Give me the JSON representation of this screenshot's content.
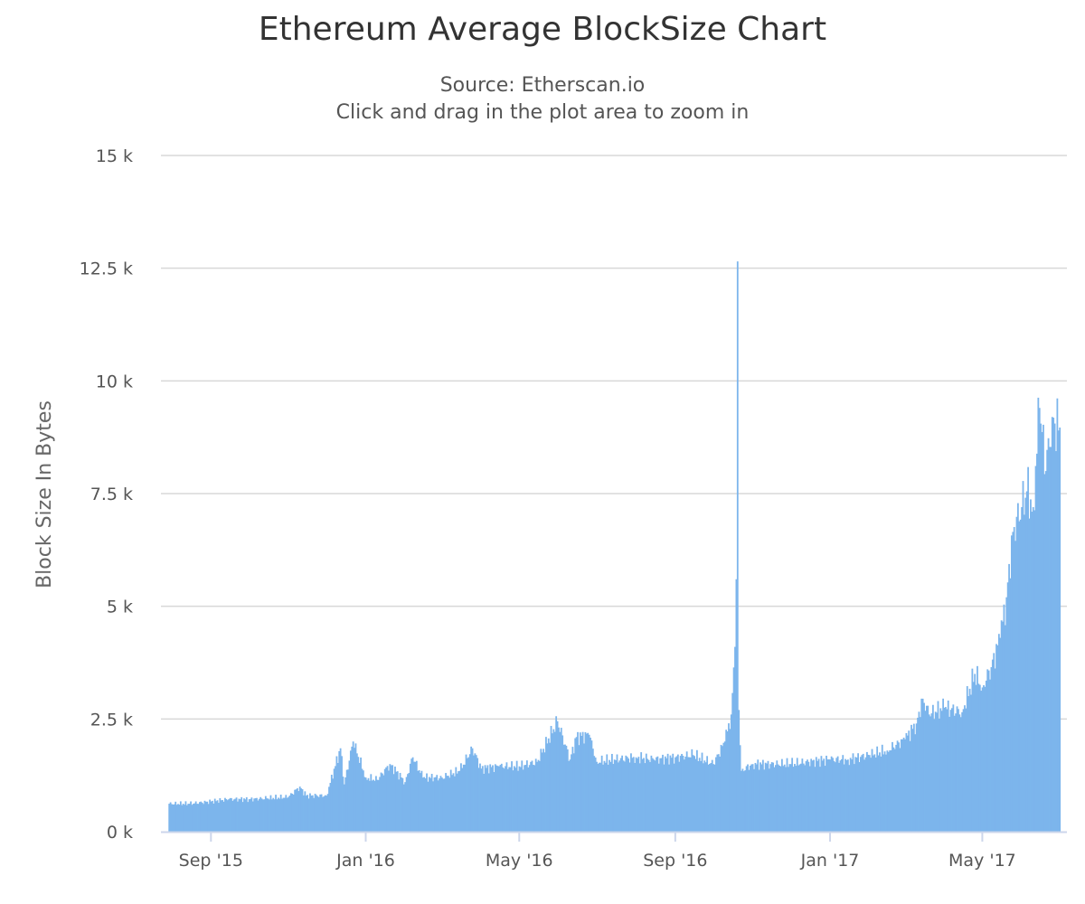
{
  "chart_data": {
    "type": "bar",
    "title": "Ethereum Average BlockSize Chart",
    "subtitle": "Source: Etherscan.io",
    "subtitle2": "Click and drag in the plot area to zoom in",
    "ylabel": "Block Size In Bytes",
    "xlabel": "",
    "ylim": [
      0,
      15000
    ],
    "y_ticks": [
      {
        "value": 0,
        "label": "0 k"
      },
      {
        "value": 2500,
        "label": "2.5 k"
      },
      {
        "value": 5000,
        "label": "5 k"
      },
      {
        "value": 7500,
        "label": "7.5 k"
      },
      {
        "value": 10000,
        "label": "10 k"
      },
      {
        "value": 12500,
        "label": "12.5 k"
      },
      {
        "value": 15000,
        "label": "15 k"
      }
    ],
    "xlim": [
      "2015-07-30",
      "2017-07-01"
    ],
    "x_ticks": [
      {
        "date": "2015-09-01",
        "label": "Sep '15"
      },
      {
        "date": "2016-01-01",
        "label": "Jan '16"
      },
      {
        "date": "2016-05-01",
        "label": "May '16"
      },
      {
        "date": "2016-09-01",
        "label": "Sep '16"
      },
      {
        "date": "2017-01-01",
        "label": "Jan '17"
      },
      {
        "date": "2017-05-01",
        "label": "May '17"
      }
    ],
    "series_color": "#7cb5ec",
    "grid": true,
    "legend": "none",
    "points": [
      [
        "2015-07-30",
        620
      ],
      [
        "2015-08-15",
        620
      ],
      [
        "2015-09-01",
        670
      ],
      [
        "2015-09-15",
        720
      ],
      [
        "2015-10-01",
        720
      ],
      [
        "2015-10-15",
        740
      ],
      [
        "2015-11-01",
        770
      ],
      [
        "2015-11-10",
        1000
      ],
      [
        "2015-11-15",
        800
      ],
      [
        "2015-12-01",
        800
      ],
      [
        "2015-12-12",
        1850
      ],
      [
        "2015-12-15",
        1050
      ],
      [
        "2015-12-22",
        2000
      ],
      [
        "2016-01-01",
        1200
      ],
      [
        "2016-01-10",
        1150
      ],
      [
        "2016-01-20",
        1500
      ],
      [
        "2016-02-01",
        1100
      ],
      [
        "2016-02-07",
        1650
      ],
      [
        "2016-02-15",
        1200
      ],
      [
        "2016-03-01",
        1200
      ],
      [
        "2016-03-15",
        1350
      ],
      [
        "2016-03-25",
        1850
      ],
      [
        "2016-04-01",
        1400
      ],
      [
        "2016-04-15",
        1450
      ],
      [
        "2016-05-01",
        1450
      ],
      [
        "2016-05-15",
        1550
      ],
      [
        "2016-05-31",
        2450
      ],
      [
        "2016-06-10",
        1600
      ],
      [
        "2016-06-15",
        2100
      ],
      [
        "2016-06-25",
        2150
      ],
      [
        "2016-07-01",
        1550
      ],
      [
        "2016-07-15",
        1600
      ],
      [
        "2016-08-01",
        1650
      ],
      [
        "2016-08-15",
        1600
      ],
      [
        "2016-09-01",
        1650
      ],
      [
        "2016-09-15",
        1700
      ],
      [
        "2016-10-01",
        1500
      ],
      [
        "2016-10-10",
        2000
      ],
      [
        "2016-10-15",
        2600
      ],
      [
        "2016-10-18",
        4100
      ],
      [
        "2016-10-19",
        5600
      ],
      [
        "2016-10-20",
        12650
      ],
      [
        "2016-10-21",
        2700
      ],
      [
        "2016-10-23",
        1350
      ],
      [
        "2016-11-01",
        1500
      ],
      [
        "2016-11-15",
        1500
      ],
      [
        "2016-12-01",
        1500
      ],
      [
        "2016-12-15",
        1550
      ],
      [
        "2017-01-01",
        1600
      ],
      [
        "2017-01-15",
        1600
      ],
      [
        "2017-02-01",
        1700
      ],
      [
        "2017-02-15",
        1800
      ],
      [
        "2017-03-01",
        2050
      ],
      [
        "2017-03-10",
        2400
      ],
      [
        "2017-03-15",
        2950
      ],
      [
        "2017-03-20",
        2600
      ],
      [
        "2017-04-01",
        2750
      ],
      [
        "2017-04-15",
        2650
      ],
      [
        "2017-04-25",
        3500
      ],
      [
        "2017-05-01",
        3200
      ],
      [
        "2017-05-08",
        3650
      ],
      [
        "2017-05-15",
        4300
      ],
      [
        "2017-05-20",
        5200
      ],
      [
        "2017-05-25",
        6650
      ],
      [
        "2017-06-01",
        7200
      ],
      [
        "2017-06-05",
        7550
      ],
      [
        "2017-06-10",
        7200
      ],
      [
        "2017-06-15",
        9400
      ],
      [
        "2017-06-20",
        8000
      ],
      [
        "2017-06-25",
        9200
      ],
      [
        "2017-06-30",
        8900
      ]
    ]
  }
}
